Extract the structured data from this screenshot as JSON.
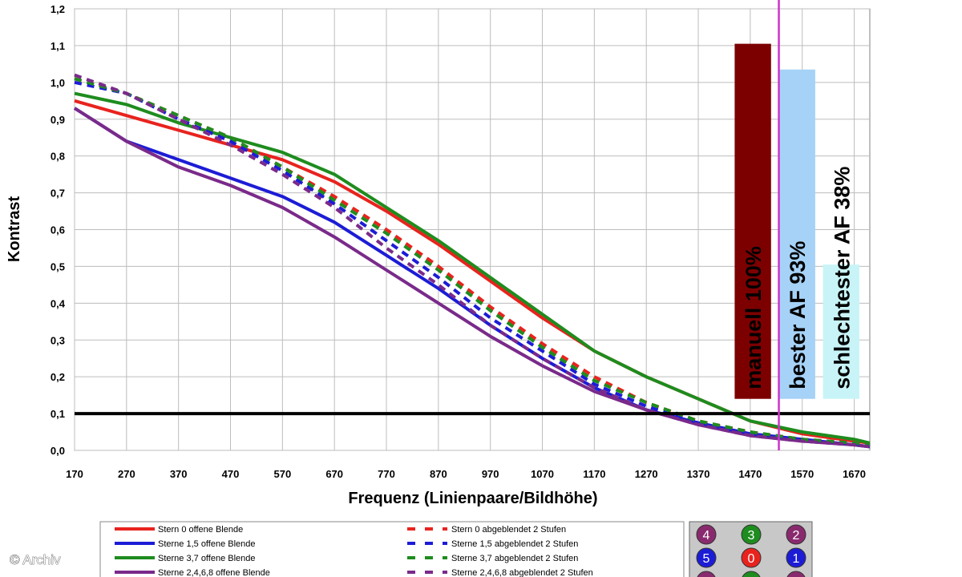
{
  "chart_data": {
    "type": "line",
    "title": "",
    "xlabel": "Frequenz (Linienpaare/Bildhöhe)",
    "ylabel": "Kontrast",
    "xlim": [
      170,
      1700
    ],
    "ylim": [
      0,
      1.2
    ],
    "x_ticks": [
      "170",
      "270",
      "370",
      "470",
      "570",
      "670",
      "770",
      "870",
      "970",
      "1070",
      "1170",
      "1270",
      "1370",
      "1470",
      "1570",
      "1670"
    ],
    "y_ticks": [
      "0,0",
      "0,1",
      "0,2",
      "0,3",
      "0,4",
      "0,5",
      "0,6",
      "0,7",
      "0,8",
      "0,9",
      "1,0",
      "1,1",
      "1,2"
    ],
    "grid": true,
    "reference_line": {
      "y": 0.1,
      "color": "#000000"
    },
    "vertical_line": {
      "x": 1525,
      "color": "#cc33cc"
    },
    "x": [
      170,
      270,
      370,
      470,
      570,
      670,
      770,
      870,
      970,
      1070,
      1170,
      1270,
      1370,
      1470,
      1570,
      1670,
      1700
    ],
    "series": [
      {
        "name": "Stern 0 offene Blende",
        "color": "#e8231e",
        "dash": false,
        "values": [
          0.95,
          0.91,
          0.87,
          0.83,
          0.79,
          0.73,
          0.65,
          0.56,
          0.46,
          0.36,
          0.27,
          0.2,
          0.14,
          0.08,
          0.045,
          0.025,
          0.02
        ]
      },
      {
        "name": "Sterne 1,5 offene Blende",
        "color": "#1c1cd6",
        "dash": false,
        "values": [
          0.93,
          0.84,
          0.79,
          0.74,
          0.69,
          0.62,
          0.53,
          0.44,
          0.34,
          0.25,
          0.17,
          0.11,
          0.075,
          0.045,
          0.03,
          0.015,
          0.01
        ]
      },
      {
        "name": "Sterne 3,7 offene Blende",
        "color": "#1e8c1e",
        "dash": false,
        "values": [
          0.97,
          0.94,
          0.89,
          0.85,
          0.81,
          0.75,
          0.66,
          0.57,
          0.47,
          0.37,
          0.27,
          0.2,
          0.14,
          0.08,
          0.05,
          0.03,
          0.02
        ]
      },
      {
        "name": "Sterne 2,4,6,8 offene Blende",
        "color": "#7a2a8a",
        "dash": false,
        "values": [
          0.93,
          0.84,
          0.77,
          0.72,
          0.66,
          0.58,
          0.49,
          0.4,
          0.31,
          0.23,
          0.16,
          0.11,
          0.07,
          0.04,
          0.025,
          0.015,
          0.01
        ]
      },
      {
        "name": "Stern 0 abgeblendet 2 Stufen",
        "color": "#e8231e",
        "dash": true,
        "values": [
          1.01,
          0.97,
          0.91,
          0.85,
          0.77,
          0.69,
          0.6,
          0.5,
          0.39,
          0.29,
          0.2,
          0.13,
          0.08,
          0.05,
          0.03,
          0.02,
          0.015
        ]
      },
      {
        "name": "Sterne 1,5 abgeblendet 2 Stufen",
        "color": "#1c1cd6",
        "dash": true,
        "values": [
          1.0,
          0.97,
          0.9,
          0.84,
          0.76,
          0.67,
          0.57,
          0.47,
          0.36,
          0.27,
          0.18,
          0.12,
          0.075,
          0.045,
          0.03,
          0.018,
          0.012
        ]
      },
      {
        "name": "Sterne 3,7 abgeblendet 2 Stufen",
        "color": "#1e8c1e",
        "dash": true,
        "values": [
          1.01,
          0.97,
          0.91,
          0.85,
          0.77,
          0.68,
          0.59,
          0.49,
          0.38,
          0.28,
          0.19,
          0.13,
          0.08,
          0.05,
          0.03,
          0.02,
          0.015
        ]
      },
      {
        "name": "Sterne 2,4,6,8 abgeblendet 2 Stufen",
        "color": "#7a2a8a",
        "dash": true,
        "values": [
          1.02,
          0.97,
          0.9,
          0.83,
          0.75,
          0.66,
          0.55,
          0.45,
          0.34,
          0.25,
          0.17,
          0.11,
          0.07,
          0.04,
          0.025,
          0.015,
          0.01
        ]
      }
    ],
    "bars": [
      {
        "label": "manuell 100%",
        "value": 1.105,
        "x_from": 1440,
        "x_to": 1510,
        "color": "#7d0000"
      },
      {
        "label": "bester AF 93%",
        "value": 1.035,
        "x_from": 1525,
        "x_to": 1595,
        "color": "#a6d2f7"
      },
      {
        "label": "schlechtester AF 38%",
        "value": 0.505,
        "x_from": 1610,
        "x_to": 1680,
        "color": "#c8f4f7"
      }
    ],
    "legend_position": "bottom"
  },
  "markers": [
    {
      "label": "4",
      "color": "#8a2a6e"
    },
    {
      "label": "3",
      "color": "#1e8c1e"
    },
    {
      "label": "2",
      "color": "#8a2a6e"
    },
    {
      "label": "5",
      "color": "#1c1cd6"
    },
    {
      "label": "0",
      "color": "#e8231e"
    },
    {
      "label": "1",
      "color": "#1c1cd6"
    },
    {
      "label": "",
      "color": "#8a2a6e"
    },
    {
      "label": "",
      "color": "#1e8c1e"
    },
    {
      "label": "",
      "color": "#8a2a6e"
    }
  ],
  "watermark": "© Archiv"
}
